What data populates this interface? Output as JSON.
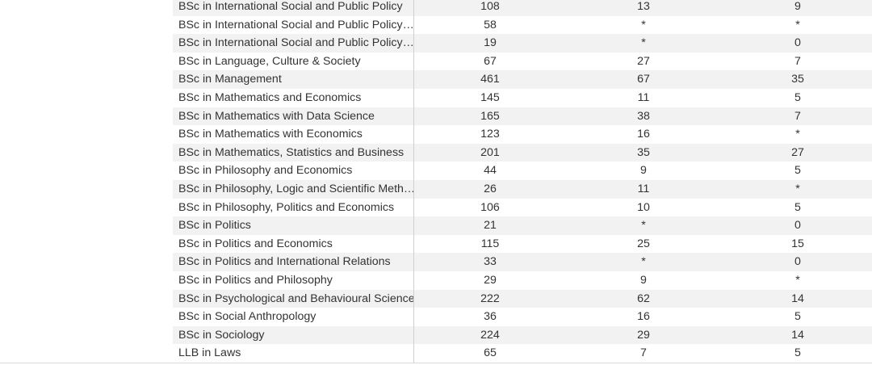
{
  "table": {
    "rows": [
      {
        "programme": "BSc in International Social and Public Policy",
        "v1": "108",
        "v2": "13",
        "v3": "9"
      },
      {
        "programme": "BSc in International Social and Public Policy with Politics",
        "v1": "58",
        "v2": "*",
        "v3": "*"
      },
      {
        "programme": "BSc in International Social and Public Policy with Economics",
        "v1": "19",
        "v2": "*",
        "v3": "0"
      },
      {
        "programme": "BSc in Language, Culture & Society",
        "v1": "67",
        "v2": "27",
        "v3": "7"
      },
      {
        "programme": "BSc in Management",
        "v1": "461",
        "v2": "67",
        "v3": "35"
      },
      {
        "programme": "BSc in Mathematics and Economics",
        "v1": "145",
        "v2": "11",
        "v3": "5"
      },
      {
        "programme": "BSc in Mathematics with Data Science",
        "v1": "165",
        "v2": "38",
        "v3": "7"
      },
      {
        "programme": "BSc in Mathematics with Economics",
        "v1": "123",
        "v2": "16",
        "v3": "*"
      },
      {
        "programme": "BSc in Mathematics, Statistics and Business",
        "v1": "201",
        "v2": "35",
        "v3": "27"
      },
      {
        "programme": "BSc in Philosophy and Economics",
        "v1": "44",
        "v2": "9",
        "v3": "5"
      },
      {
        "programme": "BSc in Philosophy, Logic and Scientific Method",
        "v1": "26",
        "v2": "11",
        "v3": "*"
      },
      {
        "programme": "BSc in Philosophy, Politics and Economics",
        "v1": "106",
        "v2": "10",
        "v3": "5"
      },
      {
        "programme": "BSc in Politics",
        "v1": "21",
        "v2": "*",
        "v3": "0"
      },
      {
        "programme": "BSc in Politics and Economics",
        "v1": "115",
        "v2": "25",
        "v3": "15"
      },
      {
        "programme": "BSc in Politics and International Relations",
        "v1": "33",
        "v2": "*",
        "v3": "0"
      },
      {
        "programme": "BSc in Politics and Philosophy",
        "v1": "29",
        "v2": "9",
        "v3": "*"
      },
      {
        "programme": "BSc in Psychological and Behavioural Science",
        "v1": "222",
        "v2": "62",
        "v3": "14"
      },
      {
        "programme": "BSc in Social Anthropology",
        "v1": "36",
        "v2": "16",
        "v3": "5"
      },
      {
        "programme": "BSc in Sociology",
        "v1": "224",
        "v2": "29",
        "v3": "14"
      },
      {
        "programme": "LLB in Laws",
        "v1": "65",
        "v2": "7",
        "v3": "5"
      }
    ]
  }
}
